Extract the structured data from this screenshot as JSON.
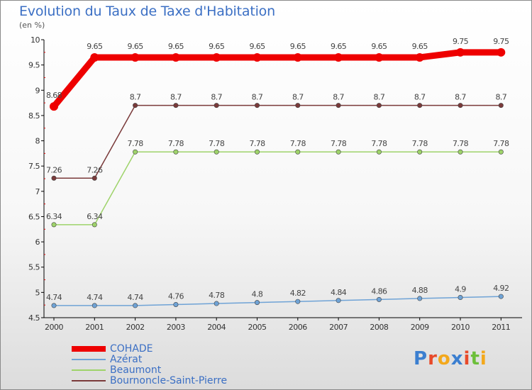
{
  "chart_data": {
    "type": "line",
    "title": "Evolution du Taux de Taxe d'Habitation",
    "ylabel": "(en %)",
    "x": [
      "2000",
      "2001",
      "2002",
      "2003",
      "2004",
      "2005",
      "2006",
      "2007",
      "2008",
      "2009",
      "2010",
      "2011"
    ],
    "ylim": [
      4.5,
      10
    ],
    "yticks": [
      "4.5",
      "5",
      "5.5",
      "6",
      "6.5",
      "7",
      "7.5",
      "8",
      "8.5",
      "9",
      "9.5",
      "10"
    ],
    "grid": false,
    "legend_position": "bottom-left",
    "series": [
      {
        "name": "COHADE",
        "color": "#ee0000",
        "values": [
          8.68,
          9.65,
          9.65,
          9.65,
          9.65,
          9.65,
          9.65,
          9.65,
          9.65,
          9.65,
          9.75,
          9.75
        ],
        "labels": [
          "8.68",
          "9.65",
          "9.65",
          "9.65",
          "9.65",
          "9.65",
          "9.65",
          "9.65",
          "9.65",
          "9.65",
          "9.75",
          "9.75"
        ]
      },
      {
        "name": "Azérat",
        "color": "#6fa3d6",
        "values": [
          4.74,
          4.74,
          4.74,
          4.76,
          4.78,
          4.8,
          4.82,
          4.84,
          4.86,
          4.88,
          4.9,
          4.92
        ],
        "labels": [
          "4.74",
          "4.74",
          "4.74",
          "4.76",
          "4.78",
          "4.8",
          "4.82",
          "4.84",
          "4.86",
          "4.88",
          "4.9",
          "4.92"
        ]
      },
      {
        "name": "Beaumont",
        "color": "#9ed36a",
        "values": [
          6.34,
          6.34,
          7.78,
          7.78,
          7.78,
          7.78,
          7.78,
          7.78,
          7.78,
          7.78,
          7.78,
          7.78
        ],
        "labels": [
          "6.34",
          "6.34",
          "7.78",
          "7.78",
          "7.78",
          "7.78",
          "7.78",
          "7.78",
          "7.78",
          "7.78",
          "7.78",
          "7.78"
        ]
      },
      {
        "name": "Bournoncle-Saint-Pierre",
        "color": "#7a3a3a",
        "values": [
          7.26,
          7.26,
          8.7,
          8.7,
          8.7,
          8.7,
          8.7,
          8.7,
          8.7,
          8.7,
          8.7,
          8.7
        ],
        "labels": [
          "7.26",
          "7.26",
          "8.7",
          "8.7",
          "8.7",
          "8.7",
          "8.7",
          "8.7",
          "8.7",
          "8.7",
          "8.7",
          "8.7"
        ]
      }
    ]
  },
  "logo": {
    "letters": [
      {
        "ch": "P",
        "color": "#3b7fd0"
      },
      {
        "ch": "r",
        "color": "#e84a2a"
      },
      {
        "ch": "o",
        "color": "#f3a81c"
      },
      {
        "ch": "x",
        "color": "#3b7fd0"
      },
      {
        "ch": "i",
        "color": "#e84a2a"
      },
      {
        "ch": "t",
        "color": "#6cbf3a"
      },
      {
        "ch": "i",
        "color": "#f3a81c"
      }
    ]
  }
}
